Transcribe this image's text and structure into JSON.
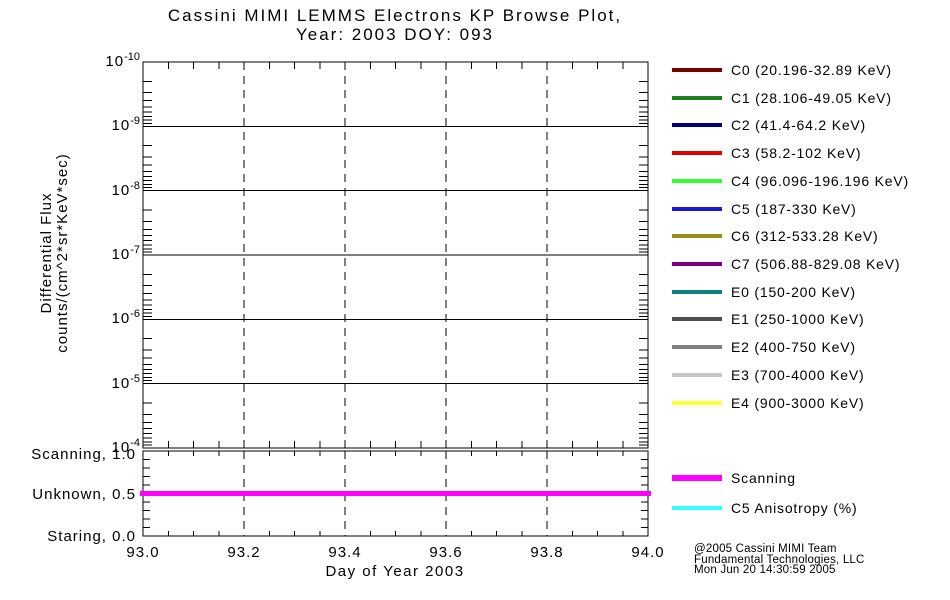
{
  "title": {
    "line1": "Cassini MIMI LEMMS Electrons KP Browse Plot,",
    "line2": "Year: 2003 DOY: 093"
  },
  "chart_data": {
    "type": "line",
    "title": "Cassini MIMI LEMMS Electrons KP Browse Plot, Year: 2003 DOY: 093",
    "grid": "on",
    "legend_position": "right",
    "main_panel": {
      "ylabel_line1": "Differential Flux",
      "ylabel_line2": "counts/(cm^2*sr*KeV*sec)",
      "y_scale": "log-inverted",
      "y_ticks": [
        {
          "base": "10",
          "exp": "-10"
        },
        {
          "base": "10",
          "exp": "-9"
        },
        {
          "base": "10",
          "exp": "-8"
        },
        {
          "base": "10",
          "exp": "-7"
        },
        {
          "base": "10",
          "exp": "-6"
        },
        {
          "base": "10",
          "exp": "-5"
        },
        {
          "base": "10",
          "exp": "-4"
        }
      ],
      "x_range": [
        93.0,
        94.0
      ],
      "x_major_ticks": [
        93.0,
        93.2,
        93.4,
        93.6,
        93.8,
        94.0
      ],
      "x_tick_labels": [
        "93.0",
        "93.2",
        "93.4",
        "93.6",
        "93.8",
        "94.0"
      ],
      "x_minor_step": 0.05,
      "xlabel": "Day of Year 2003",
      "series": []
    },
    "status_panel": {
      "y_range": [
        0.0,
        1.0
      ],
      "y_minor_step": 0.1,
      "y_ticks": [
        {
          "label": "Scanning, 1.0",
          "value": 1.0
        },
        {
          "label": "Unknown, 0.5",
          "value": 0.5
        },
        {
          "label": "Staring, 0.0",
          "value": 0.0
        }
      ],
      "series": [
        {
          "name": "Scanning",
          "color": "#FF00FF",
          "value": 0.5,
          "x": [
            93.0,
            94.0
          ]
        }
      ]
    }
  },
  "legend": {
    "items": [
      {
        "label": "C0 (20.196-32.89 KeV)",
        "color": "#7A0000"
      },
      {
        "label": "C1 (28.106-49.05 KeV)",
        "color": "#1F7F1F"
      },
      {
        "label": "C2 (41.4-64.2 KeV)",
        "color": "#00007F"
      },
      {
        "label": "C3 (58.2-102 KeV)",
        "color": "#E00000"
      },
      {
        "label": "C4 (96.096-196.196 KeV)",
        "color": "#33FF33"
      },
      {
        "label": "C5 (187-330 KeV)",
        "color": "#1A1AD6"
      },
      {
        "label": "C6 (312-533.28 KeV)",
        "color": "#8F8F1A"
      },
      {
        "label": "C7 (506.88-829.08 KeV)",
        "color": "#7F007F"
      },
      {
        "label": "E0 (150-200 KeV)",
        "color": "#0F8080"
      },
      {
        "label": "E1 (250-1000 KeV)",
        "color": "#4D4D4D"
      },
      {
        "label": "E2 (400-750 KeV)",
        "color": "#808080"
      },
      {
        "label": "E3 (700-4000 KeV)",
        "color": "#C6C6C6"
      },
      {
        "label": "E4 (900-3000 KeV)",
        "color": "#FFFF33"
      }
    ]
  },
  "legend2": {
    "items": [
      {
        "label": "Scanning",
        "color": "#FF00FF"
      },
      {
        "label": "C5 Anisotropy (%)",
        "color": "#33FFFF"
      }
    ]
  },
  "footer": {
    "line1": "@2005 Cassini MIMI Team",
    "line2": "Fundamental Technologies, LLC",
    "line3": "Mon Jun 20 14:30:59 2005"
  }
}
